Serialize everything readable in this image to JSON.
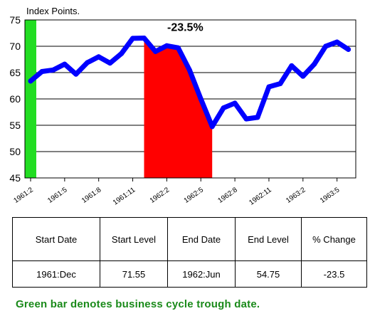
{
  "chart_data": {
    "type": "line",
    "title": "",
    "ylabel": "Index Points.",
    "xlabel": "",
    "ylim": [
      45,
      75
    ],
    "yticks": [
      45,
      50,
      55,
      60,
      65,
      70,
      75
    ],
    "grid": true,
    "x_tick_labels": [
      "1961:2",
      "1961:5",
      "1961:8",
      "1961:11",
      "1962:2",
      "1962:5",
      "1962:8",
      "1962:11",
      "1963:2",
      "1963:5"
    ],
    "x": [
      "1961:2",
      "1961:3",
      "1961:4",
      "1961:5",
      "1961:6",
      "1961:7",
      "1961:8",
      "1961:9",
      "1961:10",
      "1961:11",
      "1961:12",
      "1962:1",
      "1962:2",
      "1962:3",
      "1962:4",
      "1962:5",
      "1962:6",
      "1962:7",
      "1962:8",
      "1962:9",
      "1962:10",
      "1962:11",
      "1962:12",
      "1963:1",
      "1963:2",
      "1963:3",
      "1963:4",
      "1963:5",
      "1963:6"
    ],
    "series": [
      {
        "values": [
          63.4,
          65.2,
          65.5,
          66.6,
          64.7,
          66.9,
          68.0,
          66.8,
          68.6,
          71.5,
          71.55,
          69.0,
          70.1,
          69.7,
          65.5,
          60.0,
          54.75,
          58.3,
          59.2,
          56.2,
          56.5,
          62.3,
          62.9,
          66.3,
          64.3,
          66.6,
          70.0,
          70.8,
          69.4
        ],
        "color": "#0000ff"
      }
    ],
    "trough_bar": {
      "x": "1961:2",
      "color": "#22dd22"
    },
    "decline_period": {
      "start": "1961:12",
      "end": "1962:6",
      "color": "#ff0000"
    },
    "annotation": {
      "text": "-23.5%",
      "x": "1962:3",
      "y": 72.5
    }
  },
  "table": {
    "headers": [
      "Start Date",
      "Start Level",
      "End Date",
      "End Level",
      "% Change"
    ],
    "values": [
      "1961:Dec",
      "71.55",
      "1962:Jun",
      "54.75",
      "-23.5"
    ]
  },
  "footnote": "Green bar denotes business cycle trough date."
}
